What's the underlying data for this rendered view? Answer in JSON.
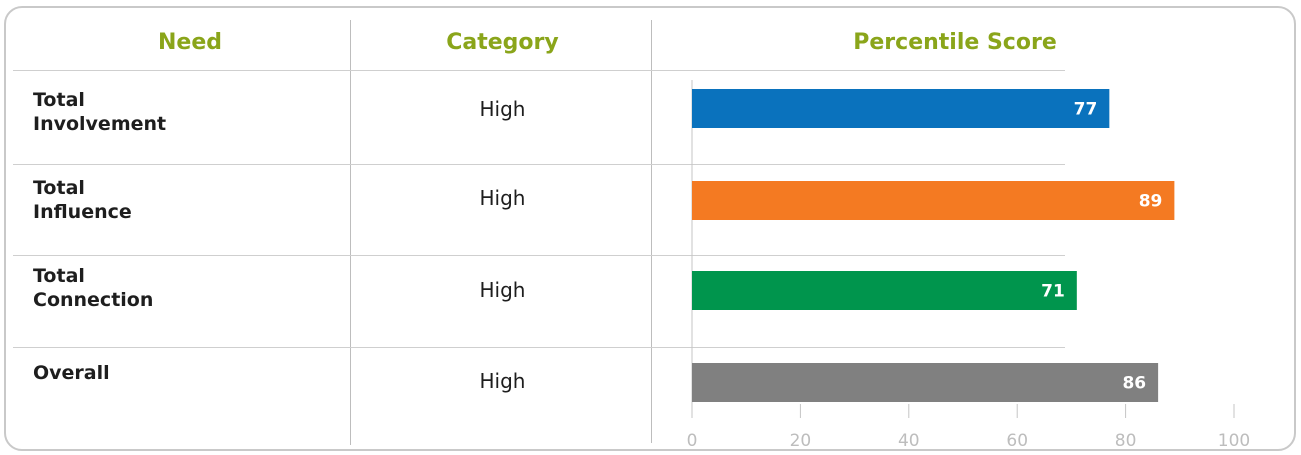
{
  "headers": {
    "need": "Need",
    "category": "Category",
    "score": "Percentile Score"
  },
  "rows": [
    {
      "need_line1": "Total",
      "need_line2": "Involvement",
      "category": "High"
    },
    {
      "need_line1": "Total",
      "need_line2": "Influence",
      "category": "High"
    },
    {
      "need_line1": "Total",
      "need_line2": "Connection",
      "category": "High"
    },
    {
      "need_line1": "Overall",
      "need_line2": "",
      "category": "High"
    }
  ],
  "colors": {
    "header": "#8aa51a",
    "blue": "#0a72bd",
    "orange": "#f47a22",
    "green": "#00954d",
    "gray": "#808080"
  },
  "chart_data": {
    "type": "bar",
    "orientation": "horizontal",
    "categories": [
      "Total Involvement",
      "Total Influence",
      "Total Connection",
      "Overall"
    ],
    "values": [
      77,
      89,
      71,
      86
    ],
    "bar_colors": [
      "#0a72bd",
      "#f47a22",
      "#00954d",
      "#808080"
    ],
    "data_labels": [
      "77",
      "89",
      "71",
      "86"
    ],
    "xlim": [
      0,
      100
    ],
    "x_ticks": [
      0,
      20,
      40,
      60,
      80,
      100
    ],
    "x_tick_labels": [
      "0",
      "20",
      "40",
      "60",
      "80",
      "100"
    ],
    "grid": false,
    "title": "",
    "xlabel": "",
    "ylabel": ""
  }
}
